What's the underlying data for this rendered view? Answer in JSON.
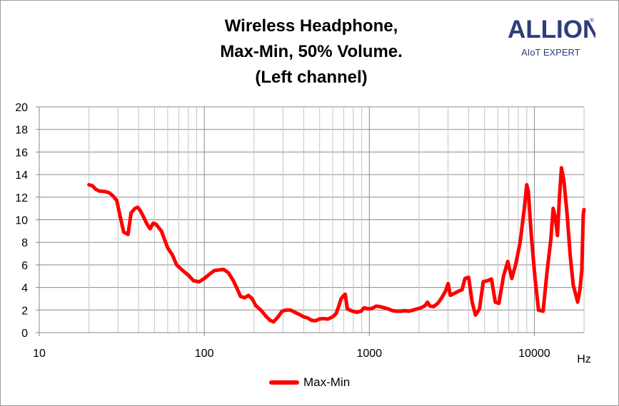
{
  "chart_data": {
    "type": "line",
    "title_lines": [
      "Wireless Headphone,",
      "Max-Min, 50% Volume.",
      "(Left channel)"
    ],
    "xlabel": "Hz",
    "ylabel": "",
    "x_scale": "log",
    "xlim": [
      10,
      20000
    ],
    "ylim": [
      0,
      20
    ],
    "x_ticks": [
      "10",
      "100",
      "1000",
      "10000"
    ],
    "y_ticks": [
      "0",
      "2",
      "4",
      "6",
      "8",
      "10",
      "12",
      "14",
      "16",
      "18",
      "20"
    ],
    "grid": true,
    "legend_position": "bottom",
    "series": [
      {
        "name": "Max-Min",
        "color": "#ff0000",
        "points": [
          [
            20,
            13.1
          ],
          [
            21,
            13.0
          ],
          [
            22,
            12.7
          ],
          [
            23,
            12.55
          ],
          [
            25,
            12.5
          ],
          [
            26.5,
            12.4
          ],
          [
            28,
            12.1
          ],
          [
            29.5,
            11.7
          ],
          [
            31,
            10.2
          ],
          [
            32.5,
            8.9
          ],
          [
            34.5,
            8.7
          ],
          [
            36,
            10.6
          ],
          [
            38,
            11.0
          ],
          [
            39.5,
            11.1
          ],
          [
            41,
            10.8
          ],
          [
            43,
            10.2
          ],
          [
            45,
            9.6
          ],
          [
            47,
            9.2
          ],
          [
            49,
            9.7
          ],
          [
            51,
            9.6
          ],
          [
            55,
            9.0
          ],
          [
            60,
            7.5
          ],
          [
            64,
            6.9
          ],
          [
            68,
            6.0
          ],
          [
            74,
            5.5
          ],
          [
            80,
            5.1
          ],
          [
            86,
            4.6
          ],
          [
            93,
            4.5
          ],
          [
            100,
            4.8
          ],
          [
            108,
            5.2
          ],
          [
            115,
            5.5
          ],
          [
            123,
            5.55
          ],
          [
            131,
            5.6
          ],
          [
            140,
            5.3
          ],
          [
            150,
            4.6
          ],
          [
            158,
            3.9
          ],
          [
            166,
            3.2
          ],
          [
            176,
            3.1
          ],
          [
            185,
            3.3
          ],
          [
            195,
            3.0
          ],
          [
            205,
            2.4
          ],
          [
            220,
            2.0
          ],
          [
            235,
            1.5
          ],
          [
            250,
            1.1
          ],
          [
            263,
            0.95
          ],
          [
            280,
            1.4
          ],
          [
            296,
            1.9
          ],
          [
            313,
            2.0
          ],
          [
            333,
            2.0
          ],
          [
            355,
            1.8
          ],
          [
            378,
            1.6
          ],
          [
            400,
            1.4
          ],
          [
            423,
            1.3
          ],
          [
            446,
            1.1
          ],
          [
            470,
            1.05
          ],
          [
            497,
            1.2
          ],
          [
            525,
            1.25
          ],
          [
            560,
            1.2
          ],
          [
            600,
            1.4
          ],
          [
            630,
            1.7
          ],
          [
            655,
            2.4
          ],
          [
            675,
            3.0
          ],
          [
            700,
            3.3
          ],
          [
            715,
            3.4
          ],
          [
            735,
            2.1
          ],
          [
            790,
            1.9
          ],
          [
            840,
            1.8
          ],
          [
            890,
            1.9
          ],
          [
            930,
            2.2
          ],
          [
            980,
            2.1
          ],
          [
            1040,
            2.15
          ],
          [
            1100,
            2.35
          ],
          [
            1160,
            2.3
          ],
          [
            1230,
            2.2
          ],
          [
            1300,
            2.1
          ],
          [
            1380,
            1.95
          ],
          [
            1460,
            1.9
          ],
          [
            1550,
            1.9
          ],
          [
            1640,
            1.95
          ],
          [
            1740,
            1.9
          ],
          [
            1840,
            2.0
          ],
          [
            1950,
            2.1
          ],
          [
            2060,
            2.2
          ],
          [
            2180,
            2.4
          ],
          [
            2250,
            2.7
          ],
          [
            2330,
            2.35
          ],
          [
            2450,
            2.3
          ],
          [
            2600,
            2.6
          ],
          [
            2750,
            3.1
          ],
          [
            2900,
            3.7
          ],
          [
            3000,
            4.35
          ],
          [
            3100,
            3.3
          ],
          [
            3300,
            3.5
          ],
          [
            3500,
            3.7
          ],
          [
            3650,
            3.8
          ],
          [
            3800,
            4.8
          ],
          [
            4000,
            4.9
          ],
          [
            4200,
            2.7
          ],
          [
            4400,
            1.55
          ],
          [
            4650,
            2.1
          ],
          [
            4900,
            4.5
          ],
          [
            5200,
            4.6
          ],
          [
            5500,
            4.75
          ],
          [
            5800,
            2.7
          ],
          [
            6100,
            2.6
          ],
          [
            6500,
            5.0
          ],
          [
            6900,
            6.3
          ],
          [
            7300,
            4.8
          ],
          [
            7700,
            6.0
          ],
          [
            8200,
            8.0
          ],
          [
            8700,
            11.0
          ],
          [
            9000,
            13.1
          ],
          [
            9200,
            12.5
          ],
          [
            9600,
            8.5
          ],
          [
            10100,
            4.8
          ],
          [
            10600,
            2.0
          ],
          [
            11300,
            1.9
          ],
          [
            11900,
            5.2
          ],
          [
            12600,
            8.3
          ],
          [
            13000,
            11.0
          ],
          [
            13400,
            10.2
          ],
          [
            13800,
            8.6
          ],
          [
            14200,
            12.0
          ],
          [
            14600,
            14.6
          ],
          [
            15100,
            13.5
          ],
          [
            15800,
            10.5
          ],
          [
            16500,
            6.8
          ],
          [
            17200,
            4.2
          ],
          [
            17800,
            3.4
          ],
          [
            18300,
            2.7
          ],
          [
            18900,
            3.8
          ],
          [
            19400,
            5.5
          ],
          [
            19800,
            10.5
          ],
          [
            20000,
            10.9
          ]
        ]
      }
    ]
  },
  "logo": {
    "brand": "ALLION",
    "tagline": "AIoT EXPERT",
    "mark": "®",
    "color": "#2e3d7a"
  }
}
